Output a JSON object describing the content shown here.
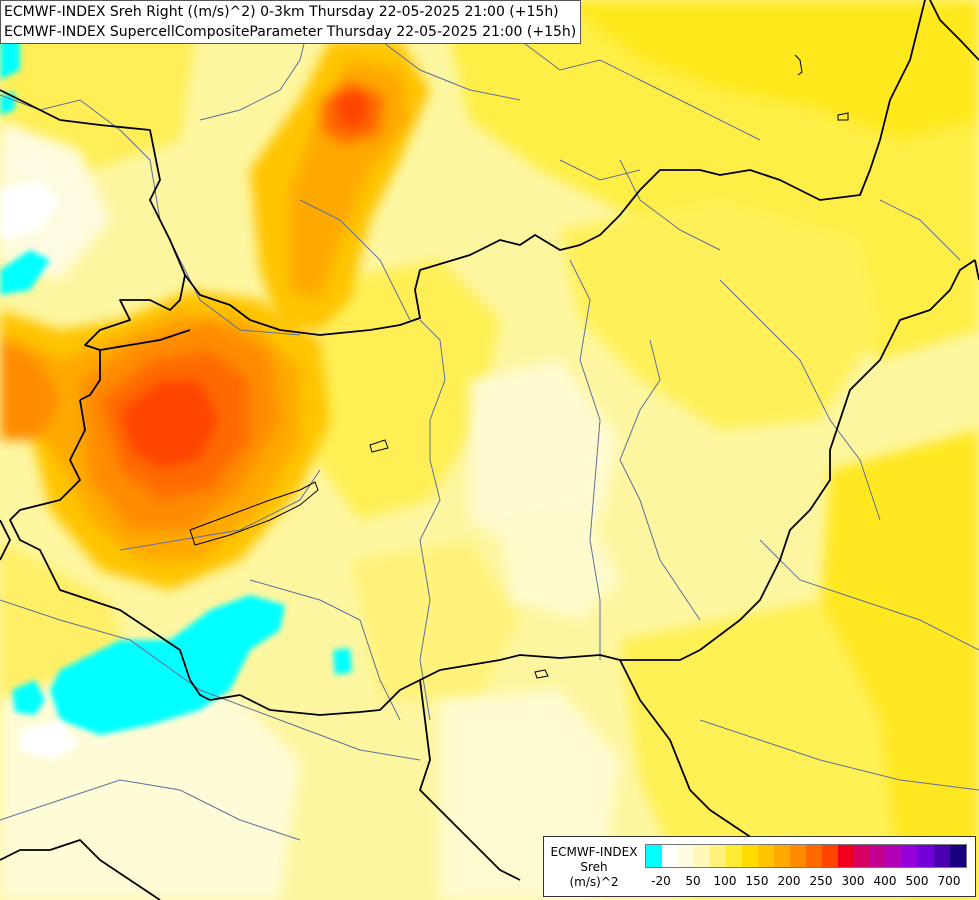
{
  "title": {
    "line1": "ECMWF-INDEX Sreh Right ((m/s)^2) 0-3km Thursday 22-05-2025 21:00 (+15h)",
    "line2": "ECMWF-INDEX SupercellCompositeParameter Thursday 22-05-2025 21:00 (+15h)"
  },
  "legend": {
    "line1": "ECMWF-INDEX",
    "line2": "Sreh",
    "line3": "(m/s)^2",
    "colors": [
      "#00ffff",
      "#ffffff",
      "#fffbe0",
      "#fff8b8",
      "#fff27c",
      "#ffea33",
      "#ffdc00",
      "#ffc400",
      "#ffa900",
      "#ff8c00",
      "#ff6a00",
      "#ff4400",
      "#f0001e",
      "#d60062",
      "#c2008f",
      "#b000b8",
      "#9600d8",
      "#7300d8",
      "#4b00b0",
      "#1a0080"
    ],
    "ticks": [
      {
        "label": "-20",
        "index": 1
      },
      {
        "label": "50",
        "index": 3
      },
      {
        "label": "100",
        "index": 5
      },
      {
        "label": "150",
        "index": 7
      },
      {
        "label": "200",
        "index": 9
      },
      {
        "label": "250",
        "index": 11
      },
      {
        "label": "300",
        "index": 13
      },
      {
        "label": "400",
        "index": 15
      },
      {
        "label": "500",
        "index": 17
      },
      {
        "label": "700",
        "index": 19
      }
    ]
  }
}
